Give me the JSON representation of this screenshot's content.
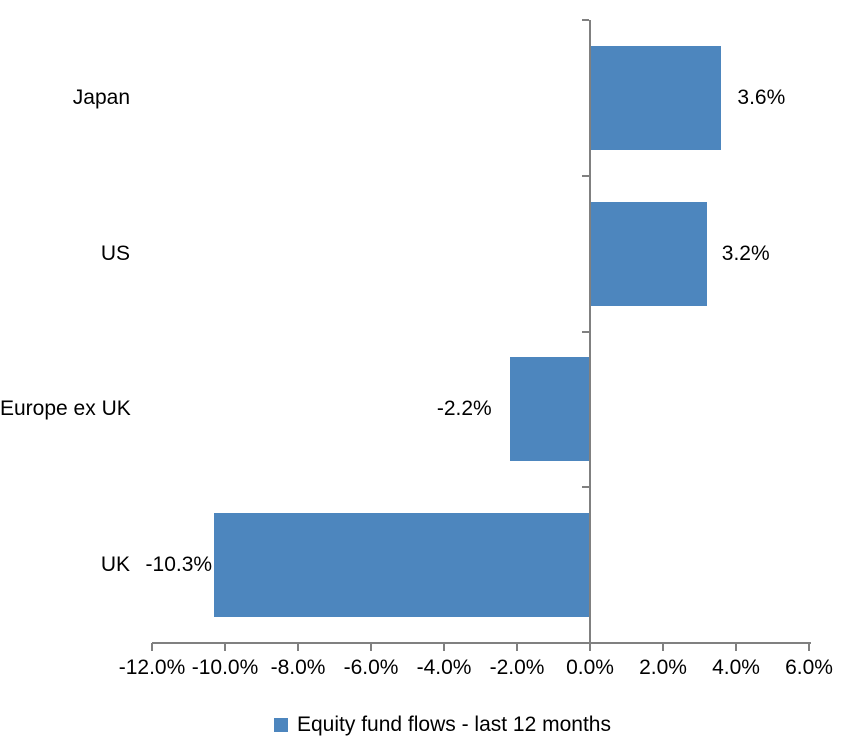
{
  "chart_data": {
    "type": "bar",
    "orientation": "horizontal",
    "categories": [
      "Japan",
      "US",
      "Europe ex UK",
      "UK"
    ],
    "values": [
      3.6,
      3.2,
      -2.2,
      -10.3
    ],
    "value_labels": [
      "3.6%",
      "3.2%",
      "-2.2%",
      "-10.3%"
    ],
    "series": [
      {
        "name": "Equity fund flows - last 12 months",
        "values": [
          3.6,
          3.2,
          -2.2,
          -10.3
        ]
      }
    ],
    "legend_label": "Equity fund flows - last 12 months",
    "legend_position": "bottom",
    "xlim": [
      -12,
      6
    ],
    "x_tick_step": 2,
    "x_tick_values": [
      -12,
      -10,
      -8,
      -6,
      -4,
      -2,
      0,
      2,
      4,
      6
    ],
    "x_tick_labels": [
      "-12.0%",
      "-10.0%",
      "-8.0%",
      "-6.0%",
      "-4.0%",
      "-2.0%",
      "0.0%",
      "2.0%",
      "4.0%",
      "6.0%"
    ],
    "grid": false,
    "bar_color": "#4D86BE",
    "axis_color": "#808080",
    "text_color": "#000000"
  }
}
